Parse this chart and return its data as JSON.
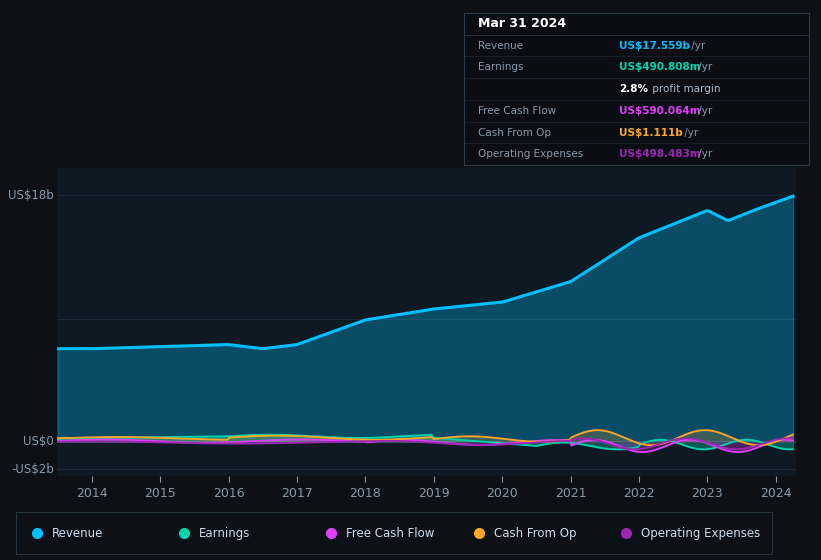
{
  "bg_color": "#0d1117",
  "plot_bg_color": "#0f1923",
  "grid_color": "#1e2d3d",
  "y_label_top": "US$18b",
  "y_label_mid": "US$0",
  "y_label_bot": "-US$2b",
  "x_ticks": [
    2014,
    2015,
    2016,
    2017,
    2018,
    2019,
    2020,
    2021,
    2022,
    2023,
    2024
  ],
  "colors": {
    "revenue": "#00bfff",
    "earnings": "#00d4aa",
    "free_cash_flow": "#e040fb",
    "cash_from_op": "#ffa726",
    "operating_expenses": "#9c27b0"
  },
  "info_box": {
    "title": "Mar 31 2024",
    "rows": [
      {
        "label": "Revenue",
        "value": "US$17.559b",
        "suffix": " /yr",
        "value_color": "#00bfff"
      },
      {
        "label": "Earnings",
        "value": "US$490.808m",
        "suffix": " /yr",
        "value_color": "#00d4aa"
      },
      {
        "label": "",
        "value": "2.8%",
        "suffix": " profit margin",
        "value_color": "#ffffff",
        "bold_part": true
      },
      {
        "label": "Free Cash Flow",
        "value": "US$590.064m",
        "suffix": " /yr",
        "value_color": "#e040fb"
      },
      {
        "label": "Cash From Op",
        "value": "US$1.111b",
        "suffix": " /yr",
        "value_color": "#ffa726"
      },
      {
        "label": "Operating Expenses",
        "value": "US$498.483m",
        "suffix": " /yr",
        "value_color": "#9c27b0"
      }
    ]
  },
  "ylim": [
    -2500000000.0,
    20000000000.0
  ],
  "xlim": [
    2013.5,
    2024.3
  ],
  "legend_items": [
    {
      "label": "Revenue",
      "color": "#00bfff"
    },
    {
      "label": "Earnings",
      "color": "#00d4aa"
    },
    {
      "label": "Free Cash Flow",
      "color": "#e040fb"
    },
    {
      "label": "Cash From Op",
      "color": "#ffa726"
    },
    {
      "label": "Operating Expenses",
      "color": "#9c27b0"
    }
  ]
}
